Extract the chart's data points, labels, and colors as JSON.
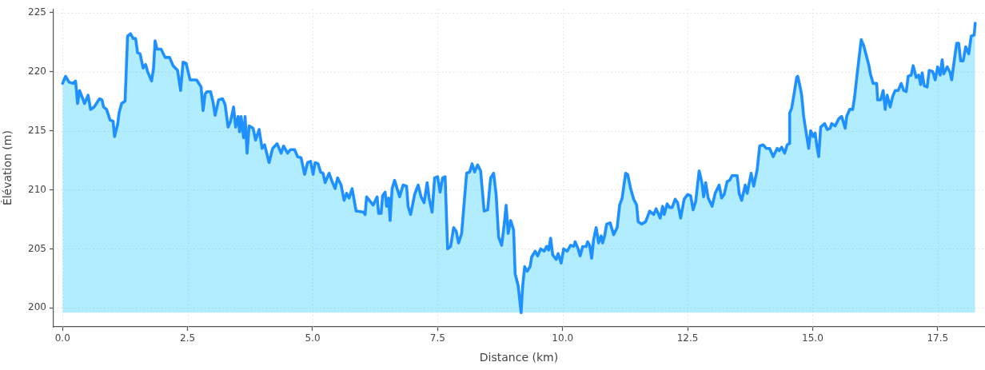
{
  "chart_data": {
    "type": "area",
    "xlabel": "Distance (km)",
    "ylabel": "Élévation (m)",
    "color": "#1e90ff",
    "grid": true,
    "marker": "none",
    "xlim": [
      -0.18,
      18.43
    ],
    "ylim": [
      198.4,
      225.3
    ],
    "xticks": [
      {
        "value": 0,
        "label": "0.0"
      },
      2.5,
      {
        "value": 5,
        "label": "5.0"
      },
      7.5,
      {
        "value": 10,
        "label": "10.0"
      },
      12.5,
      {
        "value": 15,
        "label": "15.0"
      },
      17.5
    ],
    "yticks": [
      200,
      205,
      210,
      215,
      220,
      225
    ],
    "x": [
      0.0,
      0.06,
      0.13,
      0.21,
      0.26,
      0.3,
      0.34,
      0.44,
      0.51,
      0.56,
      0.63,
      0.74,
      0.79,
      0.82,
      0.88,
      0.95,
      1.01,
      1.04,
      1.1,
      1.13,
      1.18,
      1.25,
      1.3,
      1.36,
      1.41,
      1.46,
      1.5,
      1.55,
      1.61,
      1.66,
      1.7,
      1.78,
      1.82,
      1.85,
      1.89,
      1.97,
      2.05,
      2.14,
      2.21,
      2.3,
      2.36,
      2.41,
      2.47,
      2.55,
      2.68,
      2.77,
      2.81,
      2.85,
      2.89,
      2.96,
      3.01,
      3.05,
      3.12,
      3.2,
      3.25,
      3.31,
      3.36,
      3.42,
      3.46,
      3.51,
      3.54,
      3.57,
      3.62,
      3.65,
      3.69,
      3.73,
      3.81,
      3.86,
      3.93,
      3.99,
      4.04,
      4.13,
      4.2,
      4.29,
      4.37,
      4.42,
      4.5,
      4.56,
      4.64,
      4.7,
      4.77,
      4.84,
      4.9,
      4.96,
      5.01,
      5.05,
      5.11,
      5.16,
      5.21,
      5.25,
      5.33,
      5.39,
      5.45,
      5.5,
      5.57,
      5.63,
      5.68,
      5.73,
      5.79,
      5.87,
      6.02,
      6.05,
      6.08,
      6.21,
      6.29,
      6.32,
      6.37,
      6.4,
      6.45,
      6.48,
      6.52,
      6.55,
      6.59,
      6.64,
      6.74,
      6.81,
      6.88,
      6.91,
      6.96,
      7.04,
      7.11,
      7.17,
      7.23,
      7.29,
      7.33,
      7.39,
      7.44,
      7.5,
      7.55,
      7.6,
      7.65,
      7.7,
      7.76,
      7.82,
      7.87,
      7.92,
      7.98,
      8.08,
      8.14,
      8.19,
      8.24,
      8.3,
      8.36,
      8.43,
      8.5,
      8.56,
      8.62,
      8.67,
      8.72,
      8.78,
      8.83,
      8.87,
      8.91,
      8.96,
      9.02,
      9.05,
      9.11,
      9.17,
      9.2,
      9.24,
      9.29,
      9.35,
      9.38,
      9.45,
      9.5,
      9.56,
      9.63,
      9.68,
      9.72,
      9.76,
      9.8,
      9.87,
      9.91,
      9.97,
      10.02,
      10.09,
      10.16,
      10.22,
      10.25,
      10.31,
      10.35,
      10.4,
      10.47,
      10.5,
      10.54,
      10.58,
      10.62,
      10.67,
      10.72,
      10.77,
      10.8,
      10.84,
      10.88,
      10.95,
      11.02,
      11.09,
      11.14,
      11.19,
      11.26,
      11.3,
      11.36,
      11.42,
      11.48,
      11.51,
      11.58,
      11.66,
      11.74,
      11.82,
      11.87,
      11.95,
      12.0,
      12.03,
      12.09,
      12.14,
      12.19,
      12.25,
      12.3,
      12.36,
      12.43,
      12.5,
      12.56,
      12.61,
      12.66,
      12.73,
      12.78,
      12.82,
      12.86,
      12.91,
      12.99,
      13.05,
      13.13,
      13.18,
      13.23,
      13.29,
      13.34,
      13.39,
      13.49,
      13.53,
      13.58,
      13.65,
      13.69,
      13.77,
      13.82,
      13.89,
      13.94,
      14.01,
      14.07,
      14.14,
      14.21,
      14.29,
      14.33,
      14.38,
      14.44,
      14.49,
      14.53,
      14.54,
      14.58,
      14.62,
      14.68,
      14.7,
      14.74,
      14.78,
      14.82,
      14.86,
      14.92,
      14.96,
      15.01,
      15.05,
      15.08,
      15.12,
      15.16,
      15.24,
      15.29,
      15.35,
      15.38,
      15.45,
      15.52,
      15.58,
      15.65,
      15.68,
      15.74,
      15.8,
      15.84,
      15.89,
      15.97,
      16.02,
      16.07,
      16.12,
      16.16,
      16.21,
      16.28,
      16.3,
      16.36,
      16.41,
      16.45,
      16.49,
      16.55,
      16.6,
      16.65,
      16.71,
      16.77,
      16.82,
      16.87,
      16.91,
      16.97,
      17.01,
      17.07,
      17.12,
      17.16,
      17.19,
      17.23,
      17.29,
      17.33,
      17.4,
      17.45,
      17.5,
      17.55,
      17.59,
      17.62,
      17.69,
      17.75,
      17.78,
      17.83,
      17.88,
      17.92,
      17.96,
      18.01,
      18.06,
      18.12,
      18.17,
      18.23,
      18.25
    ],
    "values": [
      219.0,
      219.6,
      219.1,
      219.0,
      219.2,
      217.3,
      218.4,
      217.3,
      218.0,
      216.8,
      217.0,
      217.7,
      217.6,
      217.0,
      216.8,
      215.9,
      215.8,
      214.5,
      215.5,
      216.5,
      217.3,
      217.5,
      223.0,
      223.2,
      222.8,
      222.8,
      221.6,
      221.5,
      220.3,
      220.6,
      220.0,
      219.2,
      220.3,
      222.6,
      221.9,
      221.9,
      221.2,
      221.2,
      220.5,
      220.1,
      218.4,
      220.8,
      220.7,
      219.3,
      219.3,
      218.7,
      216.7,
      218.1,
      218.3,
      218.3,
      217.4,
      216.3,
      217.6,
      217.7,
      217.2,
      215.3,
      215.8,
      217.0,
      215.3,
      216.2,
      214.9,
      216.2,
      214.4,
      216.2,
      213.1,
      215.4,
      215.2,
      214.2,
      215.1,
      213.5,
      213.8,
      212.3,
      213.5,
      213.9,
      213.1,
      213.7,
      213.1,
      213.4,
      213.4,
      212.8,
      212.7,
      211.3,
      212.3,
      212.4,
      211.3,
      212.3,
      212.2,
      211.5,
      211.4,
      210.6,
      211.4,
      210.7,
      210.1,
      211.0,
      210.4,
      209.1,
      209.7,
      209.3,
      210.1,
      208.2,
      208.1,
      207.9,
      209.4,
      208.7,
      209.4,
      208.0,
      208.0,
      209.5,
      209.8,
      208.6,
      209.3,
      207.4,
      210.1,
      210.8,
      209.4,
      210.4,
      210.3,
      208.6,
      207.9,
      209.6,
      210.4,
      209.4,
      208.9,
      210.6,
      209.3,
      208.1,
      211.0,
      211.1,
      209.8,
      211.0,
      211.1,
      205.0,
      205.2,
      206.8,
      206.5,
      205.5,
      206.3,
      211.4,
      211.5,
      212.2,
      211.5,
      212.1,
      211.6,
      208.2,
      208.3,
      211.0,
      211.4,
      209.6,
      206.0,
      205.3,
      207.0,
      208.7,
      206.3,
      207.4,
      206.6,
      202.9,
      201.9,
      199.6,
      201.8,
      203.5,
      203.1,
      203.5,
      204.3,
      204.8,
      204.4,
      205.0,
      204.8,
      205.2,
      204.9,
      205.9,
      204.5,
      204.1,
      204.6,
      203.8,
      205.0,
      204.8,
      205.3,
      205.2,
      205.6,
      205.0,
      204.4,
      205.2,
      205.2,
      205.6,
      205.3,
      204.2,
      205.8,
      206.8,
      205.5,
      206.1,
      205.5,
      206.1,
      207.1,
      207.2,
      206.2,
      206.8,
      208.7,
      209.3,
      211.4,
      211.3,
      210.1,
      209.2,
      208.7,
      207.3,
      207.1,
      207.3,
      208.2,
      207.9,
      208.4,
      207.6,
      208.6,
      207.9,
      208.8,
      208.5,
      208.5,
      209.2,
      208.9,
      207.6,
      209.2,
      209.6,
      209.5,
      208.3,
      209.0,
      211.6,
      210.7,
      209.4,
      210.6,
      209.3,
      208.6,
      209.7,
      210.4,
      209.3,
      209.6,
      210.7,
      210.8,
      211.2,
      211.2,
      209.7,
      209.1,
      210.4,
      209.7,
      211.4,
      210.3,
      211.7,
      213.7,
      213.8,
      213.5,
      213.5,
      212.8,
      213.5,
      213.3,
      213.6,
      213.1,
      213.8,
      213.9,
      216.5,
      216.9,
      217.9,
      219.5,
      219.6,
      218.9,
      218.0,
      216.2,
      215.1,
      213.5,
      215.0,
      214.5,
      214.8,
      213.8,
      212.8,
      215.3,
      215.6,
      215.1,
      215.2,
      215.6,
      215.4,
      216.0,
      216.2,
      215.2,
      216.2,
      216.8,
      216.8,
      217.9,
      219.8,
      222.7,
      222.2,
      221.4,
      220.6,
      219.7,
      219.0,
      219.0,
      217.6,
      217.6,
      218.4,
      216.8,
      218.0,
      217.0,
      217.9,
      218.4,
      218.4,
      219.0,
      218.4,
      218.3,
      219.6,
      219.7,
      220.5,
      219.5,
      219.7,
      218.9,
      219.9,
      218.8,
      218.7,
      220.1,
      220.0,
      219.3,
      220.4,
      219.7,
      221.0,
      219.8,
      220.4,
      219.9,
      219.3,
      220.9,
      222.4,
      222.4,
      220.9,
      220.9,
      222.1,
      221.5,
      223.0,
      223.1,
      224.1
    ]
  }
}
